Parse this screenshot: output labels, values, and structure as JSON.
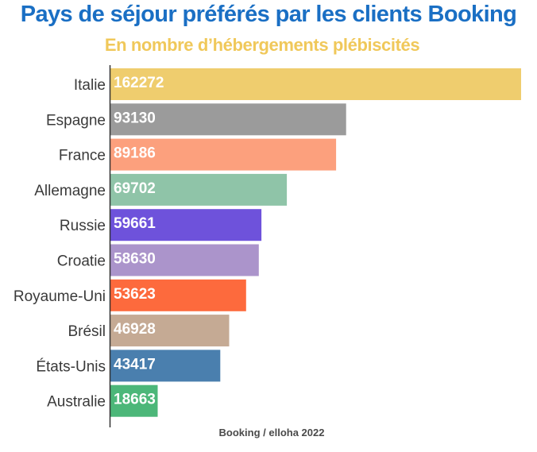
{
  "chart_data": {
    "type": "bar",
    "orientation": "horizontal",
    "title": "Pays de séjour préférés par les clients Booking",
    "subtitle": "En nombre d’hébergements plébiscités",
    "source": "Booking / elloha 2022",
    "categories": [
      "Italie",
      "Espagne",
      "France",
      "Allemagne",
      "Russie",
      "Croatie",
      "Royaume-Uni",
      "Brésil",
      "États-Unis",
      "Australie"
    ],
    "values": [
      162272,
      93130,
      89186,
      69702,
      59661,
      58630,
      53623,
      46928,
      43417,
      18663
    ],
    "colors": [
      "#efcd6e",
      "#9b9b9b",
      "#fca07d",
      "#8fc4a8",
      "#6e52db",
      "#ab94cb",
      "#fd6a3d",
      "#c5aa94",
      "#4a7fae",
      "#4cb779"
    ],
    "xlim": [
      0,
      162272
    ],
    "grid": false,
    "legend": "none"
  }
}
